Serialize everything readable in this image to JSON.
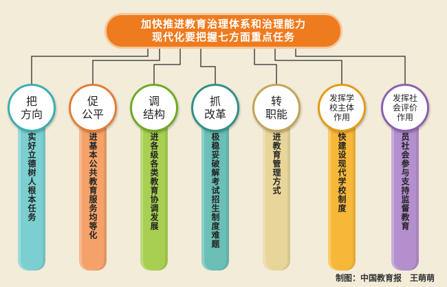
{
  "header": {
    "line1": "加快推进教育治理体系和治理能力",
    "line2": "现代化要把握七方面重点任务"
  },
  "credit": "制图：中国教育报　王萌萌",
  "colors": {
    "header": "#ef7b1f",
    "connector": "#2a2a2a",
    "background": "#f2ecd9"
  },
  "pillars": [
    {
      "title_lines": [
        "把",
        "方向"
      ],
      "text": "落实好立德树人根本任务",
      "color": "#7ccfd1",
      "ring": "#39aeb1",
      "size": "big"
    },
    {
      "title_lines": [
        "促",
        "公平"
      ],
      "text": "推进基本公共教育服务均等化",
      "color": "#f4a26a",
      "ring": "#e57b34",
      "size": "big"
    },
    {
      "title_lines": [
        "调",
        "结构"
      ],
      "text": "促进各级各类教育协调发展",
      "color": "#a8cf52",
      "ring": "#6fa824",
      "size": "big"
    },
    {
      "title_lines": [
        "抓",
        "改革"
      ],
      "text": "积极稳妥破解考试招生制度难题",
      "color": "#6bbfb6",
      "ring": "#2f8f86",
      "size": "big"
    },
    {
      "title_lines": [
        "转",
        "职能"
      ],
      "text": "改进教育管理方式",
      "color": "#e8d59a",
      "ring": "#c3a557",
      "size": "big"
    },
    {
      "title_lines": [
        "发挥学",
        "校主体",
        "作用"
      ],
      "text": "加快建设现代学校制度",
      "color": "#f7b83a",
      "ring": "#e59a13",
      "size": "small"
    },
    {
      "title_lines": [
        "发挥社",
        "会评价",
        "作用"
      ],
      "text": "动员社会参与支持监督教育",
      "color": "#b48fce",
      "ring": "#8b5fae",
      "size": "small"
    }
  ]
}
